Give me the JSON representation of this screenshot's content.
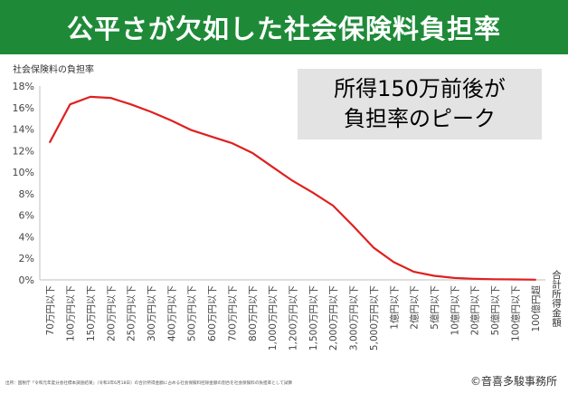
{
  "header": {
    "title": "公平さが欠如した社会保険料負担率"
  },
  "callout": {
    "line1": "所得150万前後が",
    "line2": "負担率のピーク"
  },
  "footnote": "出所：国税庁「令和元年度分会社標本調査結果」（令和3年6月18日）の合計所得金額に占める社会保険料控除金額の割合を社会保険料の負担率として試算",
  "copyright": "©音喜多駿事務所",
  "colors": {
    "banner": "#1e8a38",
    "line": "#e02020",
    "callout_bg": "#e3e3e3"
  },
  "chart_data": {
    "type": "line",
    "ylabel": "社会保険料の負担率",
    "xlabel": "合計所得金額",
    "ylim": [
      0,
      18
    ],
    "yticks": [
      "0%",
      "2%",
      "4%",
      "6%",
      "8%",
      "10%",
      "12%",
      "14%",
      "16%",
      "18%"
    ],
    "grid": false,
    "categories": [
      "70万円以下",
      "100万円以下",
      "150万円以下",
      "200万円以下",
      "250万円以下",
      "300万円以下",
      "400万円以下",
      "500万円以下",
      "600万円以下",
      "700万円以下",
      "800万円以下",
      "1,000万円以下",
      "1,200万円以下",
      "1,500万円以下",
      "2,000万円以下",
      "3,000万円以下",
      "5,000万円以下",
      "1億円以下",
      "2億円以下",
      "5億円以下",
      "10億円以下",
      "20億円以下",
      "50億円以下",
      "100億円以下",
      "100億円超"
    ],
    "series": [
      {
        "values": [
          12.8,
          16.3,
          17.0,
          16.9,
          16.3,
          15.6,
          14.8,
          13.9,
          13.3,
          12.7,
          11.8,
          10.5,
          9.2,
          8.1,
          6.9,
          5.0,
          3.0,
          1.65,
          0.75,
          0.38,
          0.18,
          0.1,
          0.06,
          0.04,
          0.02
        ]
      }
    ]
  }
}
